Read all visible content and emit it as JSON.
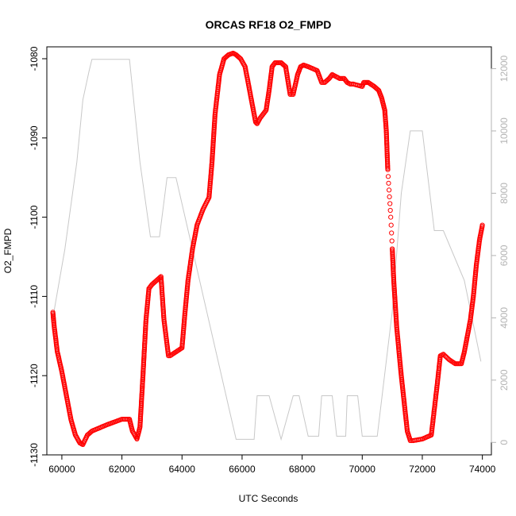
{
  "chart_data": {
    "type": "scatter",
    "title": "ORCAS RF18 O2_FMPD",
    "xlabel": "UTC Seconds",
    "ylabel": "O2_FMPD",
    "xlim": [
      59500,
      74300
    ],
    "ylim": [
      -1130,
      -1078.5
    ],
    "x_ticks": [
      60000,
      62000,
      64000,
      66000,
      68000,
      70000,
      72000,
      74000
    ],
    "x_tick_labels": [
      "60000",
      "62000",
      "64000",
      "66000",
      "68000",
      "70000",
      "72000",
      "74000"
    ],
    "y_ticks": [
      -1130,
      -1120,
      -1110,
      -1100,
      -1090,
      -1080
    ],
    "y_tick_labels": [
      "-1130",
      "-1120",
      "-1110",
      "-1100",
      "-1090",
      "-1080"
    ],
    "y2lim": [
      -400,
      12700
    ],
    "y2_ticks": [
      0,
      2000,
      4000,
      6000,
      8000,
      10000,
      12000
    ],
    "y2_tick_labels": [
      "0",
      "2000",
      "4000",
      "6000",
      "8000",
      "10000",
      "12000"
    ],
    "grid": false,
    "series": [
      {
        "color": "#ff0000",
        "marker": "open-circle",
        "axis": "left",
        "x": [
          59700,
          59750,
          59850,
          60000,
          60150,
          60300,
          60450,
          60600,
          60700,
          60850,
          61000,
          61500,
          62000,
          62250,
          62350,
          62500,
          62600,
          62700,
          62800,
          62900,
          63000,
          63150,
          63300,
          63400,
          63550,
          63600,
          63800,
          64000,
          64100,
          64200,
          64350,
          64500,
          64700,
          64900,
          65000,
          65100,
          65250,
          65400,
          65550,
          65700,
          65800,
          65950,
          66100,
          66300,
          66450,
          66500,
          66600,
          66800,
          66900,
          67000,
          67100,
          67300,
          67450,
          67600,
          67700,
          67850,
          67950,
          68050,
          68200,
          68500,
          68650,
          68750,
          68900,
          69000,
          69100,
          69250,
          69400,
          69500,
          69600,
          69700,
          70000,
          70050,
          70200,
          70400,
          70550,
          70650,
          70750,
          70800,
          70850,
          70950,
          71000,
          71050,
          71150,
          71300,
          71500,
          71600,
          71700,
          72000,
          72300,
          72500,
          72600,
          72700,
          72900,
          73100,
          73300,
          73400,
          73500,
          73600,
          73700,
          73800,
          73900,
          74000
        ],
        "y": [
          -1112,
          -1114,
          -1117,
          -1119.5,
          -1122.5,
          -1125.5,
          -1127.5,
          -1128.5,
          -1128.7,
          -1127.5,
          -1127,
          -1126.2,
          -1125.5,
          -1125.5,
          -1127,
          -1128,
          -1126.5,
          -1120,
          -1113,
          -1109,
          -1108.5,
          -1108,
          -1107.5,
          -1113,
          -1117.5,
          -1117.5,
          -1117,
          -1116.5,
          -1112,
          -1108,
          -1104,
          -1101,
          -1099,
          -1097.5,
          -1093,
          -1087,
          -1082,
          -1080,
          -1079.5,
          -1079.3,
          -1079.5,
          -1080,
          -1081,
          -1085,
          -1088,
          -1088.2,
          -1087.5,
          -1086.5,
          -1084,
          -1081,
          -1080.5,
          -1080.5,
          -1081,
          -1084.5,
          -1084.5,
          -1082,
          -1081,
          -1080.8,
          -1081,
          -1081.5,
          -1083,
          -1083,
          -1082.5,
          -1082,
          -1082.2,
          -1082.5,
          -1082.5,
          -1083,
          -1083.2,
          -1083.2,
          -1083.5,
          -1083,
          -1083,
          -1083.5,
          -1084,
          -1085,
          -1086.5,
          -1089,
          -1094,
          -1100,
          -1104,
          -1108,
          -1114,
          -1120,
          -1127,
          -1128.2,
          -1128.2,
          -1128,
          -1127.5,
          -1121,
          -1117.5,
          -1117.3,
          -1118,
          -1118.5,
          -1118.5,
          -1117,
          -1115,
          -1113,
          -1110,
          -1106,
          -1103,
          -1101
        ]
      },
      {
        "color": "#c8c8c8",
        "marker": "line",
        "axis": "right",
        "x": [
          59700,
          60100,
          60500,
          60700,
          60900,
          61000,
          62250,
          62600,
          62950,
          63250,
          63500,
          63800,
          65800,
          66400,
          66500,
          66900,
          67300,
          67700,
          67900,
          68200,
          68550,
          68650,
          69000,
          69150,
          69450,
          69500,
          69850,
          70000,
          70150,
          70500,
          71000,
          71300,
          71600,
          72000,
          72400,
          72700,
          73400,
          73950
        ],
        "y": [
          4000,
          6200,
          9000,
          11000,
          11900,
          12300,
          12300,
          9000,
          6600,
          6600,
          8500,
          8500,
          100,
          100,
          1500,
          1500,
          100,
          1500,
          1500,
          200,
          200,
          1500,
          1500,
          200,
          200,
          1500,
          1500,
          200,
          200,
          200,
          4200,
          8000,
          10000,
          10000,
          6800,
          6800,
          5200,
          2600
        ]
      }
    ]
  }
}
